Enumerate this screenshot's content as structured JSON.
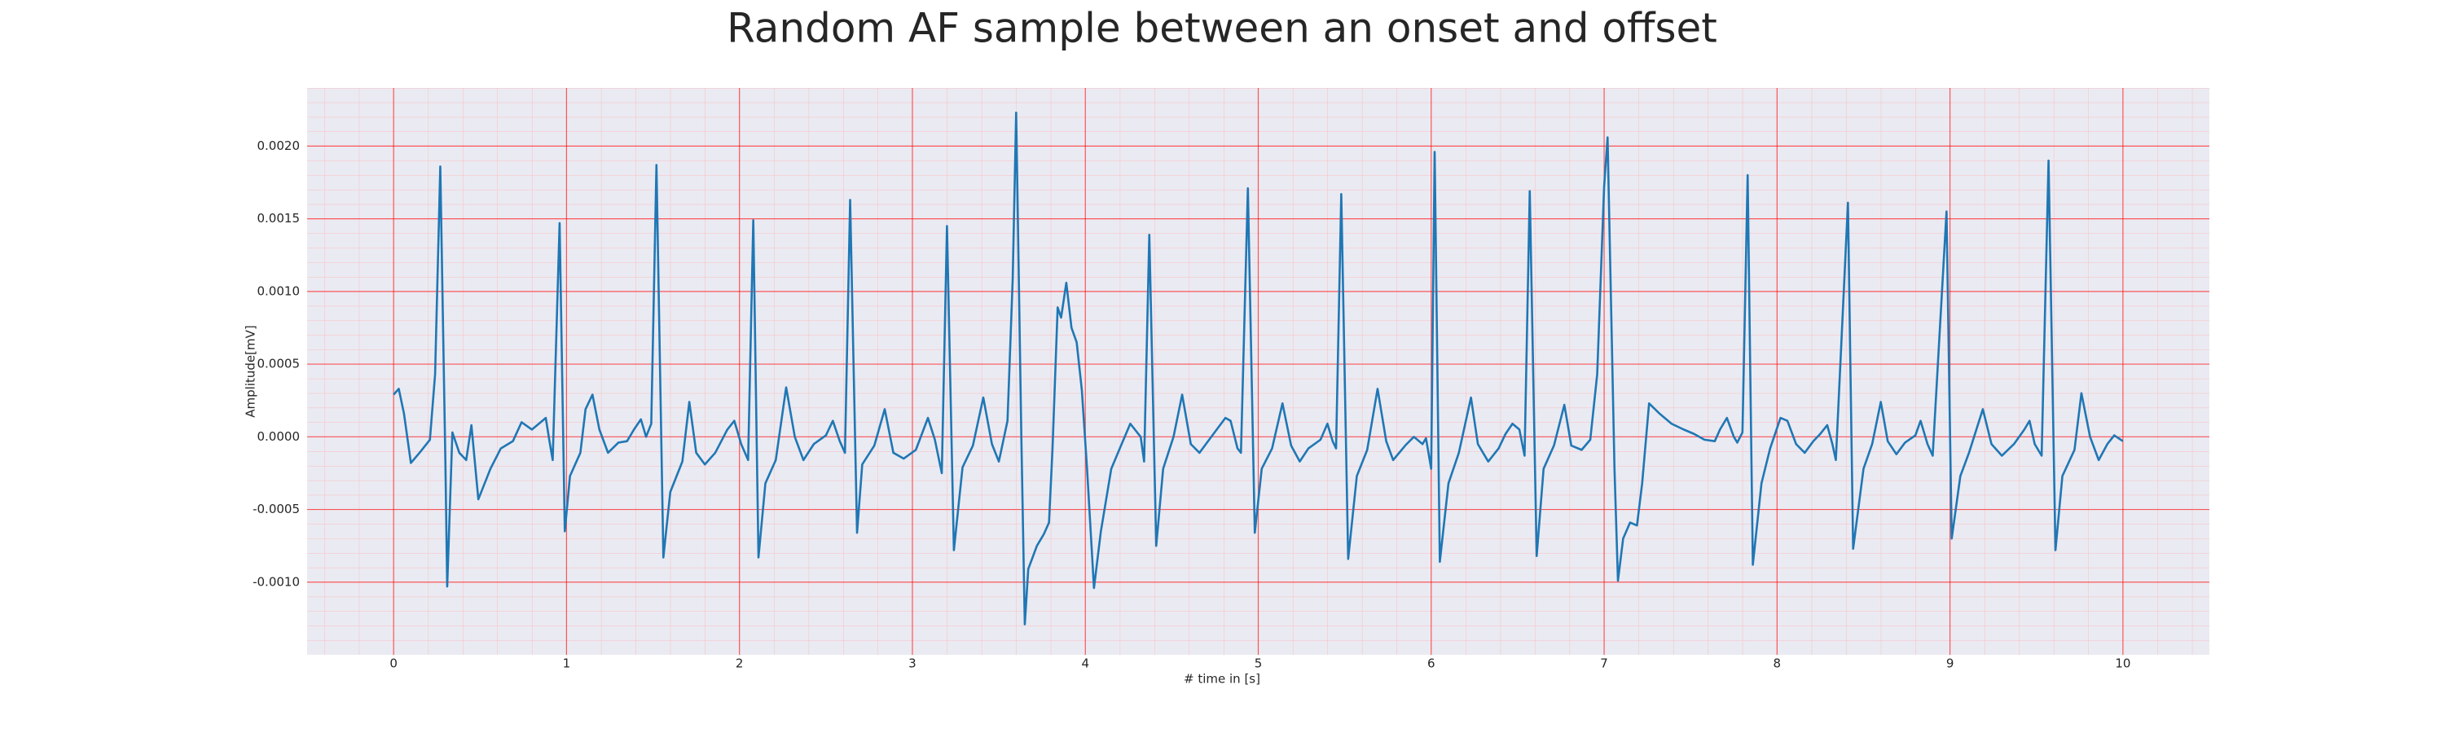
{
  "chart_data": {
    "type": "line",
    "title": "Random AF sample between an onset and offset",
    "x_label": "# time in [s]",
    "y_label": "Amplitude[mV]",
    "color": "#1f77b4",
    "grid": true,
    "xlim": [
      -0.5,
      10.5
    ],
    "ylim": [
      -0.0015,
      0.0024
    ],
    "xticks": [
      0,
      1,
      2,
      3,
      4,
      5,
      6,
      7,
      8,
      9,
      10
    ],
    "yticks": [
      {
        "value": -0.001,
        "label": "-0.0010"
      },
      {
        "value": -0.0005,
        "label": "-0.0005"
      },
      {
        "value": 0,
        "label": "0.0000"
      },
      {
        "value": 0.0005,
        "label": "0.0005"
      },
      {
        "value": 0.001,
        "label": "0.0010"
      },
      {
        "value": 0.0015,
        "label": "0.0015"
      },
      {
        "value": 0.002,
        "label": "0.0020"
      }
    ],
    "x": [
      0,
      0.03,
      0.06,
      0.1,
      0.15,
      0.21,
      0.24,
      0.27,
      0.3,
      0.31,
      0.34,
      0.38,
      0.42,
      0.45,
      0.49,
      0.56,
      0.62,
      0.69,
      0.74,
      0.8,
      0.85,
      0.88,
      0.9,
      0.92,
      0.96,
      0.99,
      1.02,
      1.08,
      1.11,
      1.15,
      1.19,
      1.24,
      1.3,
      1.35,
      1.39,
      1.43,
      1.46,
      1.49,
      1.52,
      1.56,
      1.6,
      1.67,
      1.71,
      1.75,
      1.8,
      1.86,
      1.93,
      1.97,
      2.01,
      2.05,
      2.08,
      2.11,
      2.15,
      2.21,
      2.27,
      2.32,
      2.37,
      2.43,
      2.5,
      2.54,
      2.58,
      2.61,
      2.64,
      2.68,
      2.71,
      2.78,
      2.84,
      2.89,
      2.95,
      3.02,
      3.09,
      3.13,
      3.17,
      3.2,
      3.24,
      3.29,
      3.35,
      3.41,
      3.46,
      3.5,
      3.55,
      3.58,
      3.6,
      3.63,
      3.65,
      3.67,
      3.72,
      3.76,
      3.79,
      3.81,
      3.84,
      3.86,
      3.89,
      3.92,
      3.95,
      3.98,
      4.01,
      4.05,
      4.09,
      4.15,
      4.21,
      4.26,
      4.32,
      4.34,
      4.37,
      4.41,
      4.45,
      4.51,
      4.56,
      4.61,
      4.66,
      4.71,
      4.76,
      4.81,
      4.84,
      4.88,
      4.9,
      4.94,
      4.98,
      5.02,
      5.08,
      5.14,
      5.19,
      5.24,
      5.29,
      5.36,
      5.4,
      5.43,
      5.45,
      5.48,
      5.52,
      5.57,
      5.63,
      5.69,
      5.74,
      5.78,
      5.85,
      5.9,
      5.95,
      5.97,
      6,
      6.02,
      6.05,
      6.1,
      6.16,
      6.23,
      6.27,
      6.33,
      6.39,
      6.43,
      6.47,
      6.51,
      6.54,
      6.57,
      6.61,
      6.65,
      6.71,
      6.77,
      6.81,
      6.87,
      6.92,
      6.96,
      7,
      7.02,
      7.06,
      7.08,
      7.11,
      7.15,
      7.19,
      7.22,
      7.26,
      7.32,
      7.39,
      7.46,
      7.52,
      7.58,
      7.64,
      7.67,
      7.71,
      7.75,
      7.77,
      7.8,
      7.83,
      7.86,
      7.91,
      7.96,
      8.02,
      8.06,
      8.11,
      8.16,
      8.21,
      8.25,
      8.29,
      8.32,
      8.34,
      8.41,
      8.44,
      8.5,
      8.55,
      8.6,
      8.64,
      8.69,
      8.74,
      8.8,
      8.83,
      8.87,
      8.9,
      8.98,
      9.01,
      9.06,
      9.11,
      9.19,
      9.24,
      9.3,
      9.37,
      9.43,
      9.46,
      9.49,
      9.53,
      9.57,
      9.61,
      9.65,
      9.72,
      9.76,
      9.81,
      9.86,
      9.91,
      9.95,
      10
    ],
    "values": [
      0.00029,
      0.00033,
      0.00016,
      -0.00018,
      -0.00011,
      -2e-05,
      0.00043,
      0.00186,
      -0.00021,
      -0.00103,
      3e-05,
      -0.00011,
      -0.00016,
      8e-05,
      -0.00043,
      -0.00022,
      -8e-05,
      -3e-05,
      0.0001,
      5e-05,
      0.0001,
      0.00013,
      -2e-05,
      -0.00016,
      0.00147,
      -0.00065,
      -0.00027,
      -0.00011,
      0.00019,
      0.00029,
      5e-05,
      -0.00011,
      -4e-05,
      -3e-05,
      5e-05,
      0.00012,
      0,
      9e-05,
      0.00187,
      -0.00083,
      -0.00038,
      -0.00017,
      0.00024,
      -0.00011,
      -0.00019,
      -0.00011,
      5e-05,
      0.00011,
      -5e-05,
      -0.00016,
      0.00149,
      -0.00083,
      -0.00032,
      -0.00016,
      0.00034,
      0,
      -0.00016,
      -5e-05,
      1e-05,
      0.00011,
      -3e-05,
      -0.00011,
      0.00163,
      -0.00066,
      -0.00019,
      -6e-05,
      0.00019,
      -0.00011,
      -0.00015,
      -9e-05,
      0.00013,
      -2e-05,
      -0.00025,
      0.00145,
      -0.00078,
      -0.00021,
      -6e-05,
      0.00027,
      -5e-05,
      -0.00017,
      0.00011,
      0.00108,
      0.00223,
      0,
      -0.00129,
      -0.00091,
      -0.00075,
      -0.00067,
      -0.00059,
      -9e-05,
      0.00089,
      0.00082,
      0.00106,
      0.00075,
      0.00065,
      0.00032,
      -0.00022,
      -0.00104,
      -0.00065,
      -0.00022,
      -5e-05,
      9e-05,
      0,
      -0.00017,
      0.00139,
      -0.00075,
      -0.00022,
      0,
      0.00029,
      -5e-05,
      -0.00011,
      -3e-05,
      5e-05,
      0.00013,
      0.00011,
      -8e-05,
      -0.00011,
      0.00171,
      -0.00066,
      -0.00022,
      -8e-05,
      0.00023,
      -6e-05,
      -0.00017,
      -8e-05,
      -2e-05,
      9e-05,
      -3e-05,
      -8e-05,
      0.00167,
      -0.00084,
      -0.00027,
      -9e-05,
      0.00033,
      -3e-05,
      -0.00016,
      -6e-05,
      0,
      -5e-05,
      -1e-05,
      -0.00022,
      0.00196,
      -0.00086,
      -0.00032,
      -0.00011,
      0.00027,
      -5e-05,
      -0.00017,
      -8e-05,
      2e-05,
      9e-05,
      5e-05,
      -0.00013,
      0.00169,
      -0.00082,
      -0.00022,
      -6e-05,
      0.00022,
      -6e-05,
      -9e-05,
      -2e-05,
      0.00043,
      0.00172,
      0.00206,
      -0.00022,
      -0.00099,
      -0.0007,
      -0.00059,
      -0.00061,
      -0.00032,
      0.00023,
      0.00016,
      9e-05,
      5e-05,
      2e-05,
      -2e-05,
      -3e-05,
      5e-05,
      0.00013,
      0,
      -4e-05,
      3e-05,
      0.0018,
      -0.00088,
      -0.00032,
      -8e-05,
      0.00013,
      0.00011,
      -5e-05,
      -0.00011,
      -3e-05,
      2e-05,
      8e-05,
      -5e-05,
      -0.00016,
      0.00161,
      -0.00077,
      -0.00022,
      -5e-05,
      0.00024,
      -3e-05,
      -0.00012,
      -4e-05,
      1e-05,
      0.00011,
      -5e-05,
      -0.00013,
      0.00155,
      -0.0007,
      -0.00027,
      -0.00011,
      0.00019,
      -5e-05,
      -0.00013,
      -5e-05,
      5e-05,
      0.00011,
      -5e-05,
      -0.00013,
      0.0019,
      -0.00078,
      -0.00027,
      -9e-05,
      0.0003,
      0,
      -0.00016,
      -5e-05,
      1e-05,
      -3e-05
    ]
  }
}
